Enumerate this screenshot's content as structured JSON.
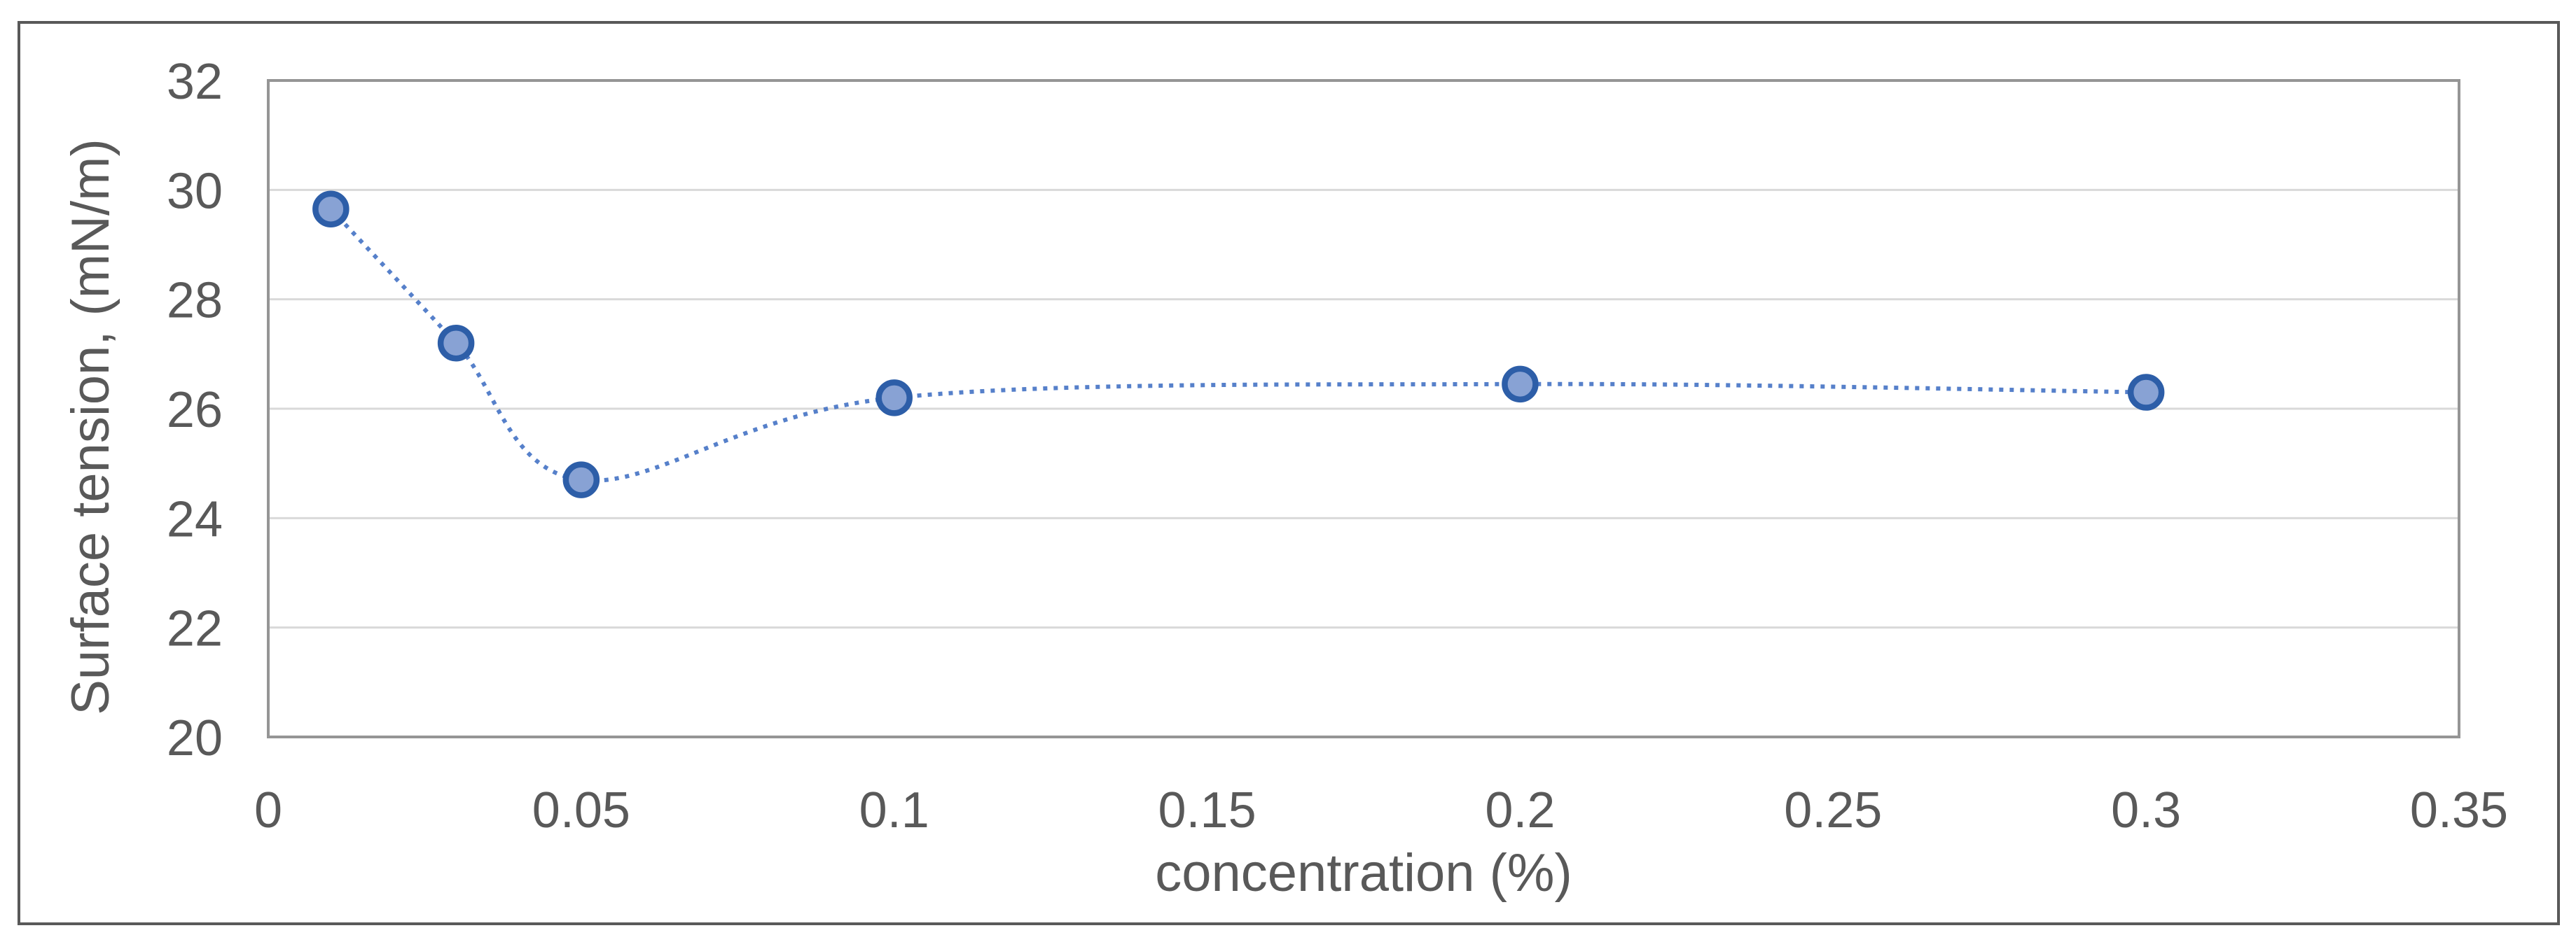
{
  "chart_data": {
    "type": "scatter",
    "title": "",
    "xlabel": "concentration (%)",
    "ylabel": "Surface tension, (mN/m)",
    "x": [
      0.01,
      0.03,
      0.05,
      0.1,
      0.2,
      0.3
    ],
    "y": [
      29.65,
      27.2,
      24.7,
      26.2,
      26.45,
      26.3
    ],
    "xlim": [
      0,
      0.35
    ],
    "ylim": [
      20,
      32
    ],
    "x_ticks": [
      0,
      0.05,
      0.1,
      0.15,
      0.2,
      0.25,
      0.3,
      0.35
    ],
    "x_tick_labels": [
      "0",
      "0.05",
      "0.1",
      "0.15",
      "0.2",
      "0.25",
      "0.3",
      "0.35"
    ],
    "y_ticks": [
      20,
      22,
      24,
      26,
      28,
      30,
      32
    ],
    "y_tick_labels": [
      "20",
      "22",
      "24",
      "26",
      "28",
      "30",
      "32"
    ],
    "grid": "horizontal",
    "legend": false,
    "line_style": "dotted-smooth",
    "marker": "circle",
    "colors": {
      "line": "#4472C4",
      "marker_fill": "#88A2D4",
      "marker_stroke": "#2D5EA8",
      "gridline": "#D9D9D9",
      "plot_border": "#959595",
      "outer_border": "#595959",
      "label_text": "#595959"
    }
  }
}
